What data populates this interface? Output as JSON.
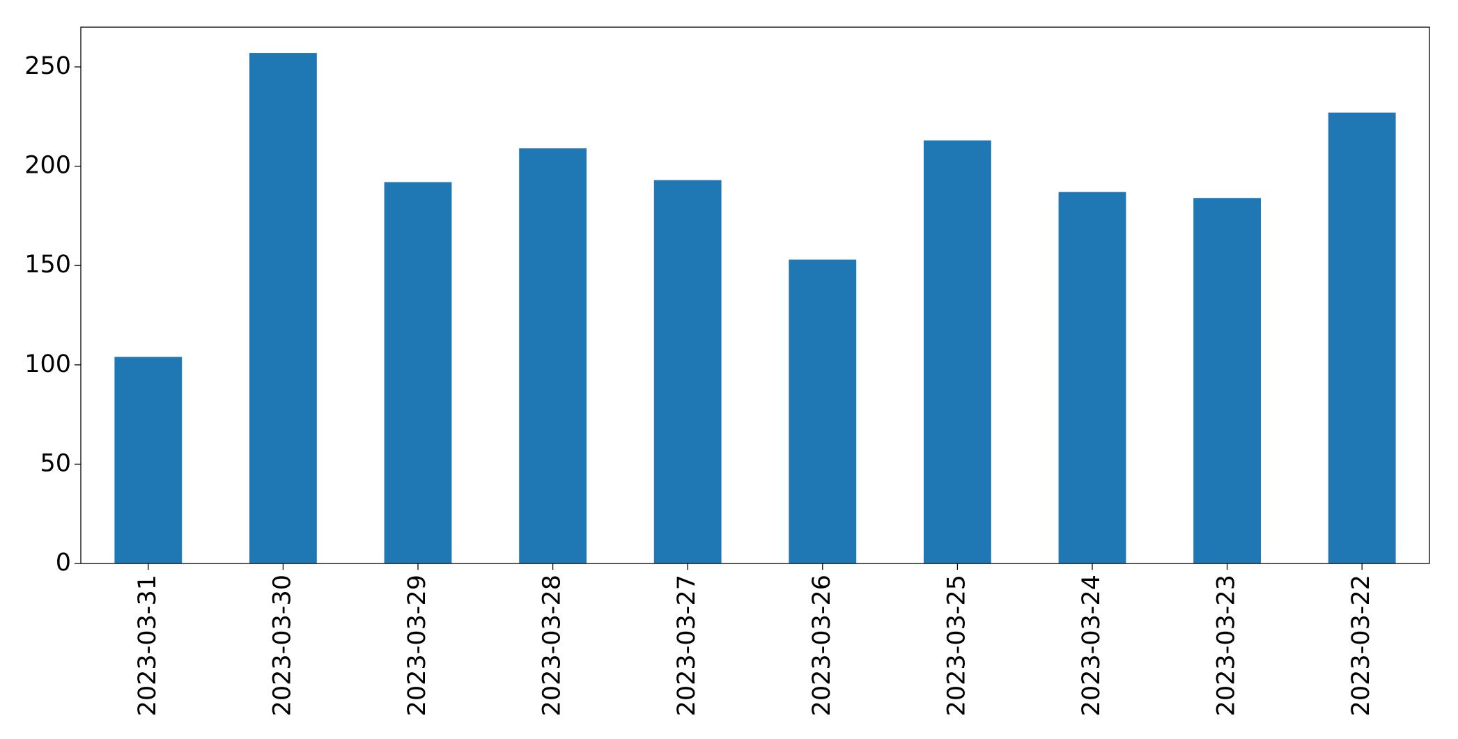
{
  "chart_data": {
    "type": "bar",
    "categories": [
      "2023-03-31",
      "2023-03-30",
      "2023-03-29",
      "2023-03-28",
      "2023-03-27",
      "2023-03-26",
      "2023-03-25",
      "2023-03-24",
      "2023-03-23",
      "2023-03-22"
    ],
    "values": [
      104,
      257,
      192,
      209,
      193,
      153,
      213,
      187,
      184,
      227
    ],
    "color": "#1f77b4",
    "ylim": [
      0,
      270
    ],
    "yticks": [
      0,
      50,
      100,
      150,
      200,
      250
    ],
    "grid": false
  }
}
